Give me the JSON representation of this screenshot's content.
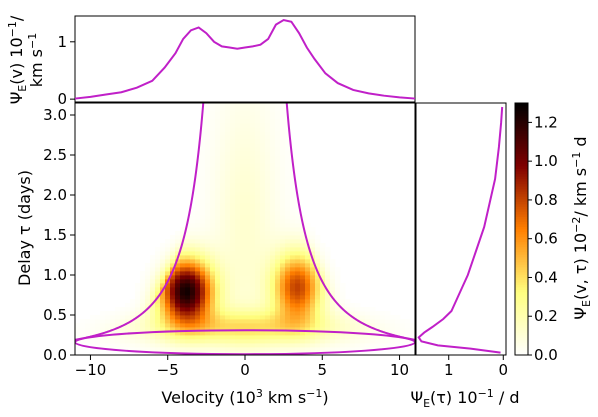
{
  "chart_data": [
    {
      "panel": "top",
      "type": "line",
      "ylabel": "Ψ_E(v) 10⁻¹/ km s⁻¹",
      "ylabel_lines": [
        "Ψ",
        "E",
        "(v) 10",
        "−1",
        "/",
        "km s",
        "−1"
      ],
      "xlim": [
        -11,
        11
      ],
      "ylim": [
        -0.05,
        1.45
      ],
      "yticks": [
        "0",
        "1"
      ],
      "line_color": "#c020c8",
      "series": [
        {
          "x": [
            -11,
            -10,
            -9,
            -8,
            -7,
            -6,
            -5.2,
            -4.5,
            -4,
            -3.5,
            -3,
            -2.5,
            -2,
            -1.5,
            -1,
            -0.5,
            0,
            0.5,
            1,
            1.5,
            2,
            2.5,
            3,
            3.5,
            4,
            4.5,
            5.2,
            6,
            7,
            8,
            9,
            10,
            11
          ],
          "y": [
            0.01,
            0.04,
            0.08,
            0.12,
            0.2,
            0.32,
            0.55,
            0.8,
            1.05,
            1.2,
            1.25,
            1.15,
            1.0,
            0.92,
            0.9,
            0.88,
            0.9,
            0.92,
            0.95,
            1.05,
            1.3,
            1.38,
            1.35,
            1.15,
            0.9,
            0.7,
            0.45,
            0.28,
            0.16,
            0.1,
            0.06,
            0.03,
            0.01
          ]
        }
      ]
    },
    {
      "panel": "main",
      "type": "heatmap",
      "xlabel": "Velocity (10³ km s⁻¹)",
      "xlabel_parts": [
        "Velocity (10",
        "3",
        " km s",
        "−1",
        ")"
      ],
      "ylabel": "Delay τ (days)",
      "xlim": [
        -11,
        11
      ],
      "ylim": [
        0,
        3.15
      ],
      "xticks": [
        -10,
        -5,
        0,
        5,
        10
      ],
      "xtick_labels": [
        "−10",
        "−5",
        "0",
        "5",
        "10"
      ],
      "yticks": [
        0.0,
        0.5,
        1.0,
        1.5,
        2.0,
        2.5,
        3.0
      ],
      "ytick_labels": [
        "0.0",
        "0.5",
        "1.0",
        "1.5",
        "2.0",
        "2.5",
        "3.0"
      ],
      "grid": false,
      "colormap": "afmhot_r",
      "envelope": {
        "type": "virial",
        "x_range": [
          -2.7,
          2.7
        ],
        "tau_at_vmax": 3.15,
        "color": "#c020c8"
      },
      "ellipse": {
        "center": [
          0,
          0.2
        ],
        "half_width": 11,
        "tau_range": [
          0.01,
          0.31
        ],
        "color": "#c020c8"
      },
      "emission": [
        {
          "v": -3.8,
          "tau": 0.8,
          "peak": 1.25,
          "width_v": 1.2,
          "width_tau": 0.28
        },
        {
          "v": 3.4,
          "tau": 0.85,
          "peak": 0.8,
          "width_v": 1.1,
          "width_tau": 0.3
        },
        {
          "v": 0.0,
          "tau": 0.35,
          "peak": 0.35,
          "width_v": 4.5,
          "width_tau": 0.15
        },
        {
          "v": 0.0,
          "tau": 1.6,
          "peak": 0.12,
          "width_v": 1.5,
          "width_tau": 1.2
        }
      ]
    },
    {
      "panel": "right",
      "type": "line",
      "xlabel": "Ψ_E(τ) 10⁻¹ / d",
      "xlabel_parts": [
        "Ψ",
        "E",
        "(τ) 10",
        "−1",
        " / d"
      ],
      "xlim": [
        1.6,
        -0.05
      ],
      "ylim": [
        0,
        3.15
      ],
      "xticks": [
        1,
        0
      ],
      "xtick_labels": [
        "1",
        "0"
      ],
      "line_color": "#c020c8",
      "series": [
        {
          "x": [
            0.05,
            0.6,
            1.2,
            1.5,
            1.55,
            1.45,
            1.3,
            1.1,
            0.95,
            0.85,
            0.75,
            0.65,
            0.5,
            0.35,
            0.25,
            0.15,
            0.08,
            0.04,
            0.02
          ],
          "y": [
            0.03,
            0.08,
            0.12,
            0.17,
            0.22,
            0.28,
            0.35,
            0.45,
            0.55,
            0.7,
            0.85,
            1.0,
            1.3,
            1.6,
            1.9,
            2.2,
            2.6,
            2.9,
            3.1
          ]
        }
      ]
    },
    {
      "panel": "colorbar",
      "type": "colorbar",
      "label": "Ψ_E(v, τ) 10⁻²/ km s⁻¹ d",
      "label_parts": [
        "Ψ",
        "E",
        "(v, τ) 10",
        "−2",
        "/ km s",
        "−1",
        " d"
      ],
      "range": [
        0,
        1.3
      ],
      "ticks": [
        0.0,
        0.2,
        0.4,
        0.6,
        0.8,
        1.0,
        1.2
      ],
      "tick_labels": [
        "0.0",
        "0.2",
        "0.4",
        "0.6",
        "0.8",
        "1.0",
        "1.2"
      ],
      "colormap": "afmhot_r"
    }
  ]
}
